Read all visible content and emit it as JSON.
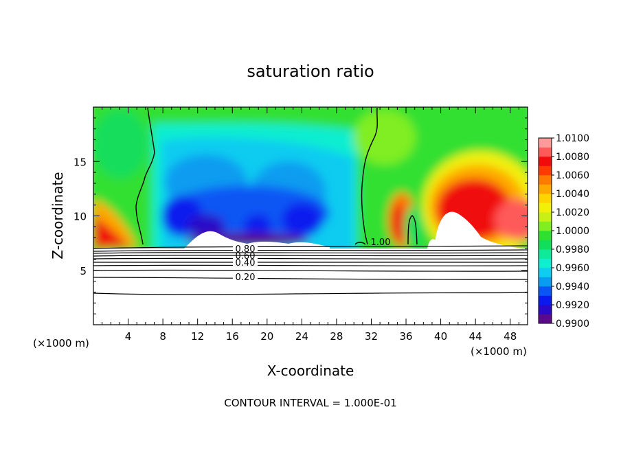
{
  "chart_data": {
    "type": "heatmap",
    "title": "saturation ratio",
    "xlabel": "X-coordinate",
    "ylabel": "Z-coordinate",
    "x_unit": "(×1000 m)",
    "y_unit": "(×1000 m)",
    "footer": "CONTOUR INTERVAL = 1.000E-01",
    "xlim": [
      0,
      50
    ],
    "ylim": [
      0,
      20
    ],
    "x_ticks": [
      "4",
      "8",
      "12",
      "16",
      "20",
      "24",
      "28",
      "32",
      "36",
      "40",
      "44",
      "48"
    ],
    "x_tick_values": [
      4,
      8,
      12,
      16,
      20,
      24,
      28,
      32,
      36,
      40,
      44,
      48
    ],
    "y_ticks": [
      "5",
      "10",
      "15"
    ],
    "y_tick_values": [
      5,
      10,
      15
    ],
    "colorbar": {
      "levels": [
        0.99,
        0.991,
        0.992,
        0.993,
        0.994,
        0.995,
        0.996,
        0.997,
        0.998,
        0.999,
        1.0,
        1.001,
        1.002,
        1.003,
        1.004,
        1.005,
        1.006,
        1.007,
        1.008,
        1.009,
        1.01
      ],
      "labels": [
        "0.9900",
        "0.9920",
        "0.9940",
        "0.9960",
        "0.9980",
        "1.0000",
        "1.0020",
        "1.0040",
        "1.0060",
        "1.0080",
        "1.0100"
      ],
      "colors": [
        "#5a0a8a",
        "#2a0ac8",
        "#0a1aee",
        "#0a56f4",
        "#0a9cf0",
        "#10ccf0",
        "#10eed0",
        "#10e89a",
        "#12de5c",
        "#30e030",
        "#80ee20",
        "#c8f018",
        "#f2f00a",
        "#ffd400",
        "#ffa800",
        "#ff7a00",
        "#ff3c00",
        "#f00c0c",
        "#ff5a5a",
        "#ff9a9a"
      ]
    },
    "contour_labels": [
      {
        "text": "0.20",
        "x": 19.6,
        "z": 4.3
      },
      {
        "text": "0.40",
        "x": 19.0,
        "z": 5.6
      },
      {
        "text": "0.60",
        "x": 19.0,
        "z": 6.2
      },
      {
        "text": "0.80",
        "x": 19.0,
        "z": 6.9
      },
      {
        "text": "1.00",
        "x": 33.5,
        "z": 7.4
      }
    ]
  }
}
